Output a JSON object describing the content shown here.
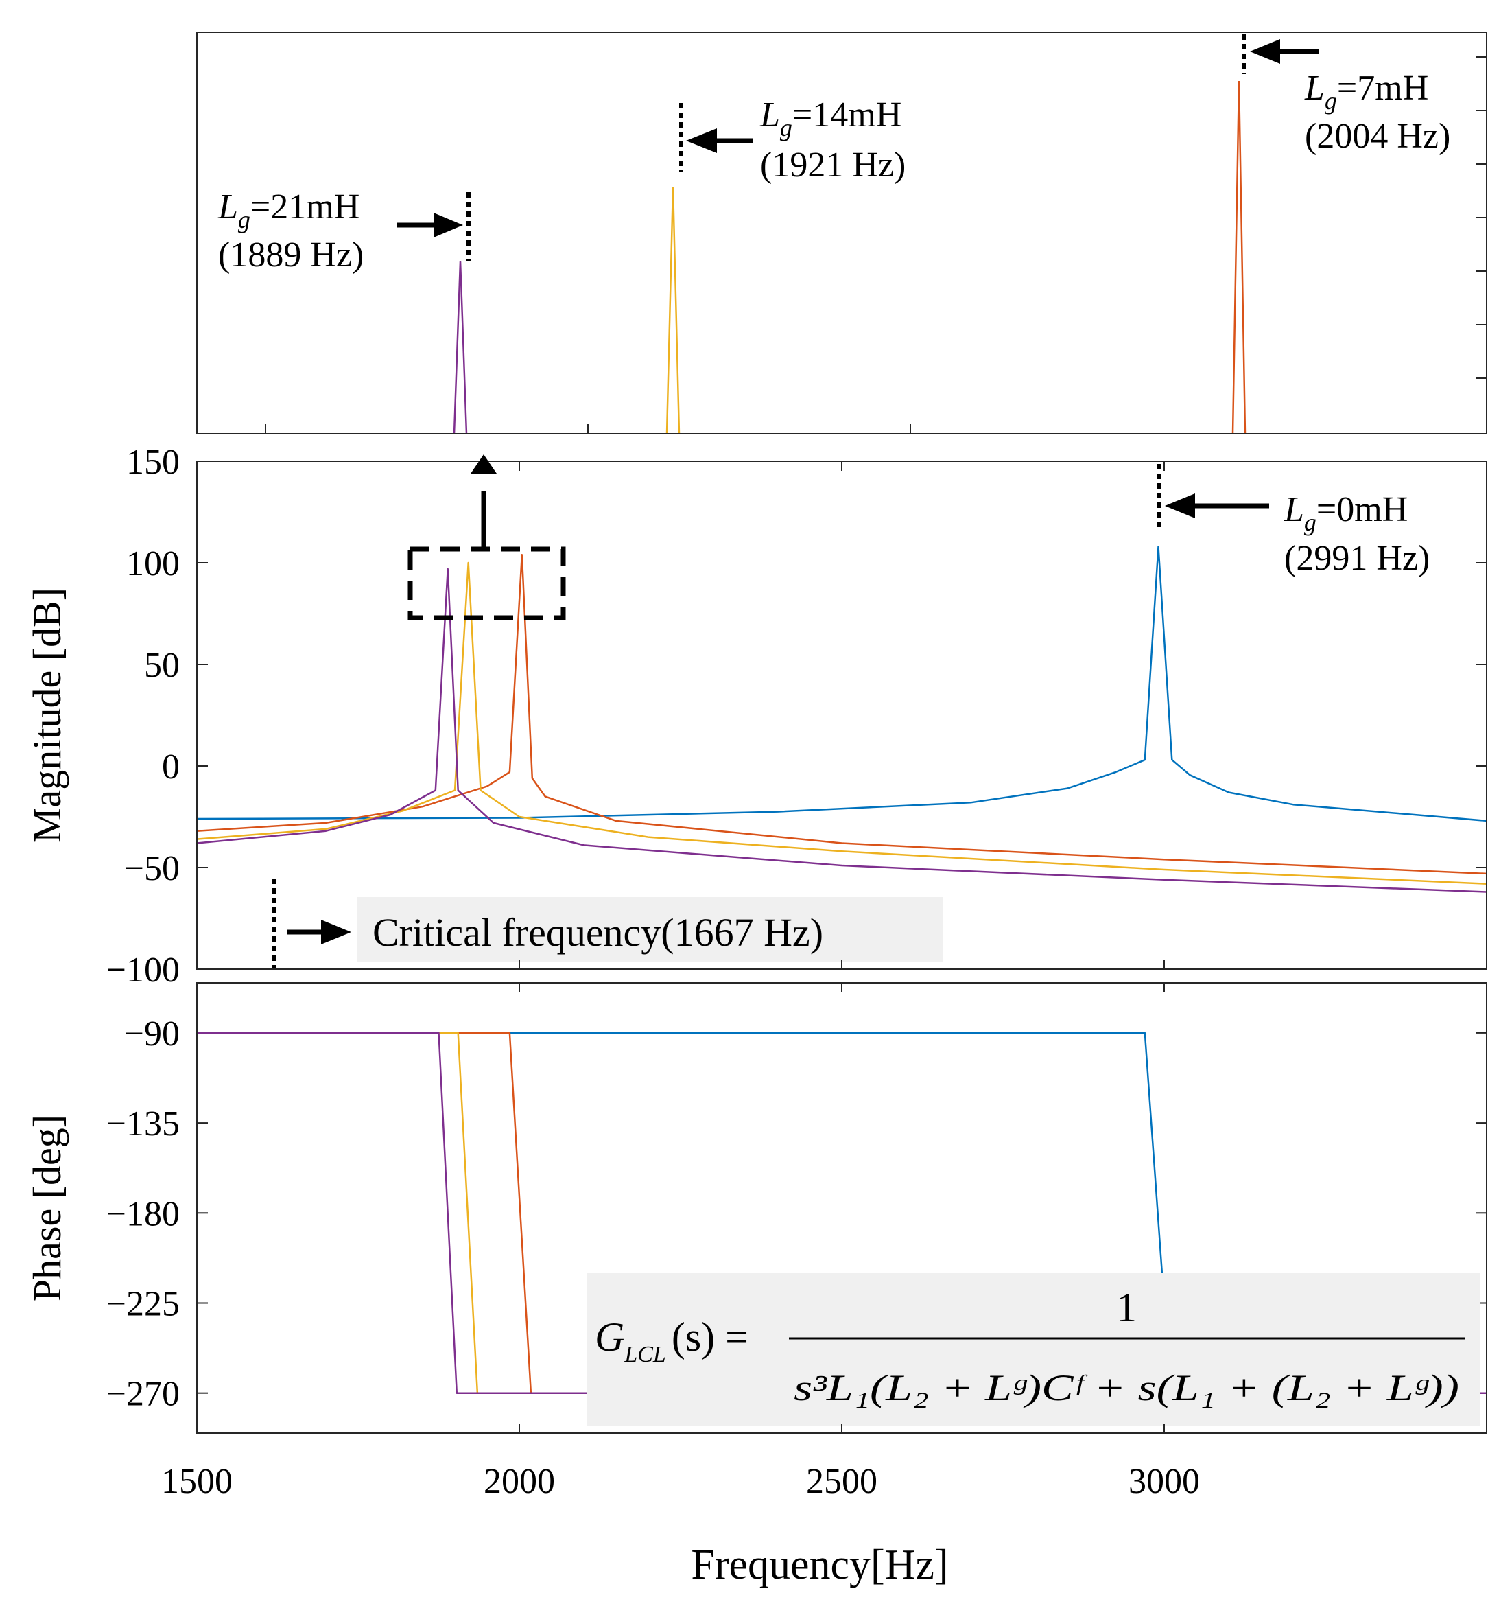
{
  "chart_data": {
    "type": "line",
    "title": "",
    "xlabel": "Frequency[Hz]",
    "xlim": [
      1500,
      3500
    ],
    "x_ticks": [
      "1500",
      "2000",
      "2500",
      "3000"
    ],
    "magnitude": {
      "ylabel": "Magnitude [dB]",
      "ylim": [
        -100,
        150
      ],
      "y_ticks": [
        "150",
        "100",
        "50",
        "0",
        "−50",
        "−100"
      ]
    },
    "phase": {
      "ylabel": "Phase [deg]",
      "ylim": [
        -290,
        -65
      ],
      "y_ticks": [
        "−90",
        "−135",
        "−180",
        "−225",
        "−270"
      ]
    },
    "series": [
      {
        "name": "Lg=0mH",
        "color": "#0072BD",
        "resonance_hz": 2991,
        "peak_db": 108,
        "magnitude": [
          [
            1500,
            -26
          ],
          [
            2000,
            -25.5
          ],
          [
            2400,
            -22.5
          ],
          [
            2700,
            -18
          ],
          [
            2850,
            -11
          ],
          [
            2925,
            -3
          ],
          [
            2970,
            3
          ],
          [
            2991,
            108
          ],
          [
            3012,
            3
          ],
          [
            3040,
            -4.5
          ],
          [
            3100,
            -13
          ],
          [
            3200,
            -19
          ],
          [
            3500,
            -27
          ]
        ],
        "phase": [
          [
            1500,
            -90
          ],
          [
            2970,
            -90
          ],
          [
            3000,
            -225
          ]
        ]
      },
      {
        "name": "Lg=7mH",
        "color": "#D95319",
        "resonance_hz": 2004,
        "peak_db": 104,
        "magnitude": [
          [
            1500,
            -32
          ],
          [
            1700,
            -28
          ],
          [
            1850,
            -20
          ],
          [
            1950,
            -10
          ],
          [
            1985,
            -3
          ],
          [
            2004,
            104
          ],
          [
            2020,
            -6
          ],
          [
            2040,
            -15
          ],
          [
            2150,
            -27
          ],
          [
            2500,
            -38
          ],
          [
            3000,
            -46
          ],
          [
            3500,
            -53
          ]
        ],
        "phase": [
          [
            1500,
            -90
          ],
          [
            1985,
            -90
          ],
          [
            2018,
            -270
          ],
          [
            3500,
            -270
          ]
        ]
      },
      {
        "name": "Lg=14mH",
        "color": "#EDB120",
        "resonance_hz": 1921,
        "peak_db": 100,
        "magnitude": [
          [
            1500,
            -36
          ],
          [
            1700,
            -31
          ],
          [
            1820,
            -22
          ],
          [
            1900,
            -12
          ],
          [
            1921,
            100
          ],
          [
            1940,
            -12
          ],
          [
            2000,
            -25
          ],
          [
            2200,
            -35
          ],
          [
            2500,
            -42
          ],
          [
            3000,
            -51
          ],
          [
            3500,
            -58
          ]
        ],
        "phase": [
          [
            1500,
            -90
          ],
          [
            1905,
            -90
          ],
          [
            1935,
            -270
          ],
          [
            3500,
            -270
          ]
        ]
      },
      {
        "name": "Lg=21mH",
        "color": "#7E2F8E",
        "resonance_hz": 1889,
        "peak_db": 97,
        "magnitude": [
          [
            1500,
            -38
          ],
          [
            1700,
            -32
          ],
          [
            1800,
            -24
          ],
          [
            1870,
            -12
          ],
          [
            1889,
            97
          ],
          [
            1905,
            -12
          ],
          [
            1960,
            -28
          ],
          [
            2100,
            -39
          ],
          [
            2500,
            -49
          ],
          [
            3000,
            -56
          ],
          [
            3500,
            -62
          ]
        ],
        "phase": [
          [
            1500,
            -90
          ],
          [
            1875,
            -90
          ],
          [
            1903,
            -270
          ],
          [
            3500,
            -270
          ]
        ]
      }
    ],
    "annotations": {
      "zoom_labels": [
        {
          "name": "Lg=21mH",
          "sym": "L",
          "sub": "g",
          "rest": "=21mH",
          "freq": "(1889 Hz)"
        },
        {
          "name": "Lg=14mH",
          "sym": "L",
          "sub": "g",
          "rest": "=14mH",
          "freq": "(1921 Hz)"
        },
        {
          "name": "Lg=7mH",
          "sym": "L",
          "sub": "g",
          "rest": "=7mH",
          "freq": "(2004 Hz)"
        }
      ],
      "lg0_label": {
        "sym": "L",
        "sub": "g",
        "rest": "=0mH",
        "freq": "(2991 Hz)"
      },
      "critical_frequency": "Critical frequency(1667 Hz)",
      "formula": {
        "lhs_sym": "G",
        "lhs_sub": "LCL",
        "lhs_arg": "(s) =",
        "numerator": "1",
        "denominator": "s³L₁(L₂ + Lᵍ)Cᶠ + s(L₁ + (L₂ + Lᵍ))"
      }
    }
  }
}
